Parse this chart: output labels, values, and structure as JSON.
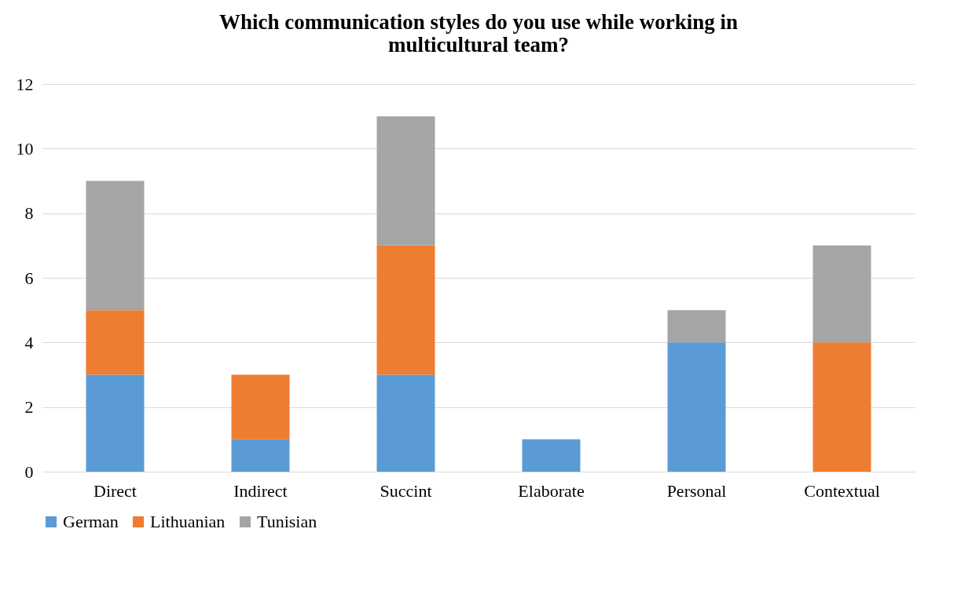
{
  "chart_data": {
    "type": "bar",
    "title": "Which communication styles do you use while working in multicultural team?",
    "categories": [
      "Direct",
      "Indirect",
      "Succint",
      "Elaborate",
      "Personal",
      "Contextual"
    ],
    "stacked": true,
    "series": [
      {
        "name": "German",
        "color": "#5b9bd5",
        "values": [
          3,
          1,
          3,
          1,
          4,
          0
        ]
      },
      {
        "name": "Lithuanian",
        "color": "#ed7d31",
        "values": [
          2,
          2,
          4,
          0,
          0,
          4
        ]
      },
      {
        "name": "Tunisian",
        "color": "#a5a5a5",
        "values": [
          4,
          0,
          4,
          0,
          1,
          3
        ]
      }
    ],
    "ylim": [
      0,
      12
    ],
    "yticks": [
      0,
      2,
      4,
      6,
      8,
      10,
      12
    ],
    "grid": "y",
    "legend": "bottom"
  }
}
